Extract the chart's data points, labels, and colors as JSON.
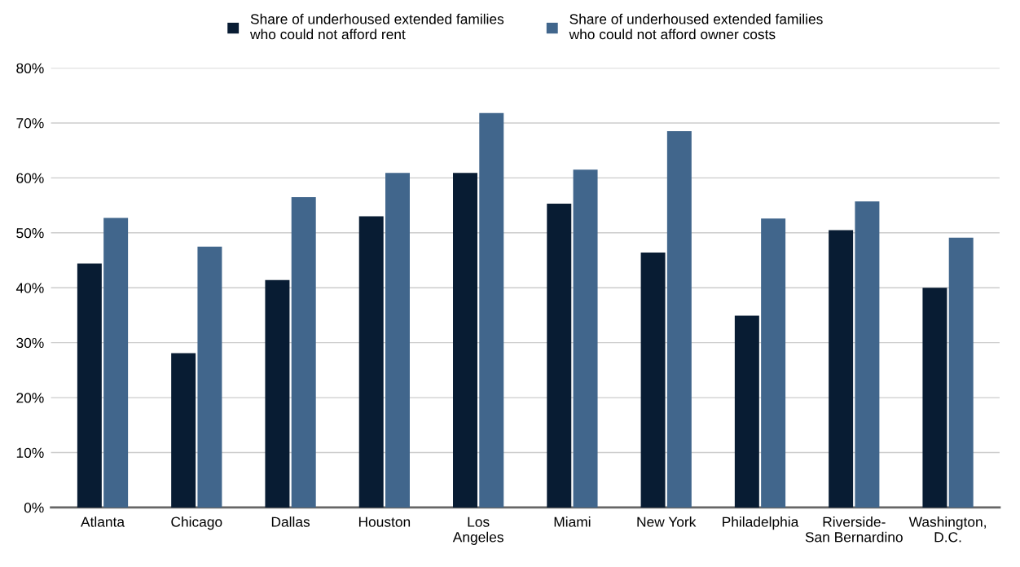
{
  "chart_data": {
    "type": "bar",
    "categories": [
      "Atlanta",
      "Chicago",
      "Dallas",
      "Houston",
      "Los\nAngeles",
      "Miami",
      "New York",
      "Philadelphia",
      "Riverside-\nSan Bernardino",
      "Washington,\nD.C."
    ],
    "series": [
      {
        "name": "Share of underhoused extended families\nwho could not afford rent",
        "color": "#081c33",
        "values": [
          44.4,
          28.1,
          41.4,
          53.0,
          60.9,
          55.3,
          46.4,
          34.9,
          50.5,
          40.0
        ]
      },
      {
        "name": "Share of underhoused extended families\nwho could not afford owner costs",
        "color": "#41668c",
        "values": [
          52.7,
          47.5,
          56.5,
          60.9,
          71.8,
          61.5,
          68.5,
          52.6,
          55.7,
          49.1
        ]
      }
    ],
    "ylim": [
      0,
      80
    ],
    "yticks": [
      {
        "value": 0,
        "label": "0%"
      },
      {
        "value": 10,
        "label": "10%"
      },
      {
        "value": 20,
        "label": "20%"
      },
      {
        "value": 30,
        "label": "30%"
      },
      {
        "value": 40,
        "label": "40%"
      },
      {
        "value": 50,
        "label": "50%"
      },
      {
        "value": 60,
        "label": "60%"
      },
      {
        "value": 70,
        "label": "70%"
      },
      {
        "value": 80,
        "label": "80%"
      }
    ],
    "grid": "y",
    "legend": "top"
  }
}
